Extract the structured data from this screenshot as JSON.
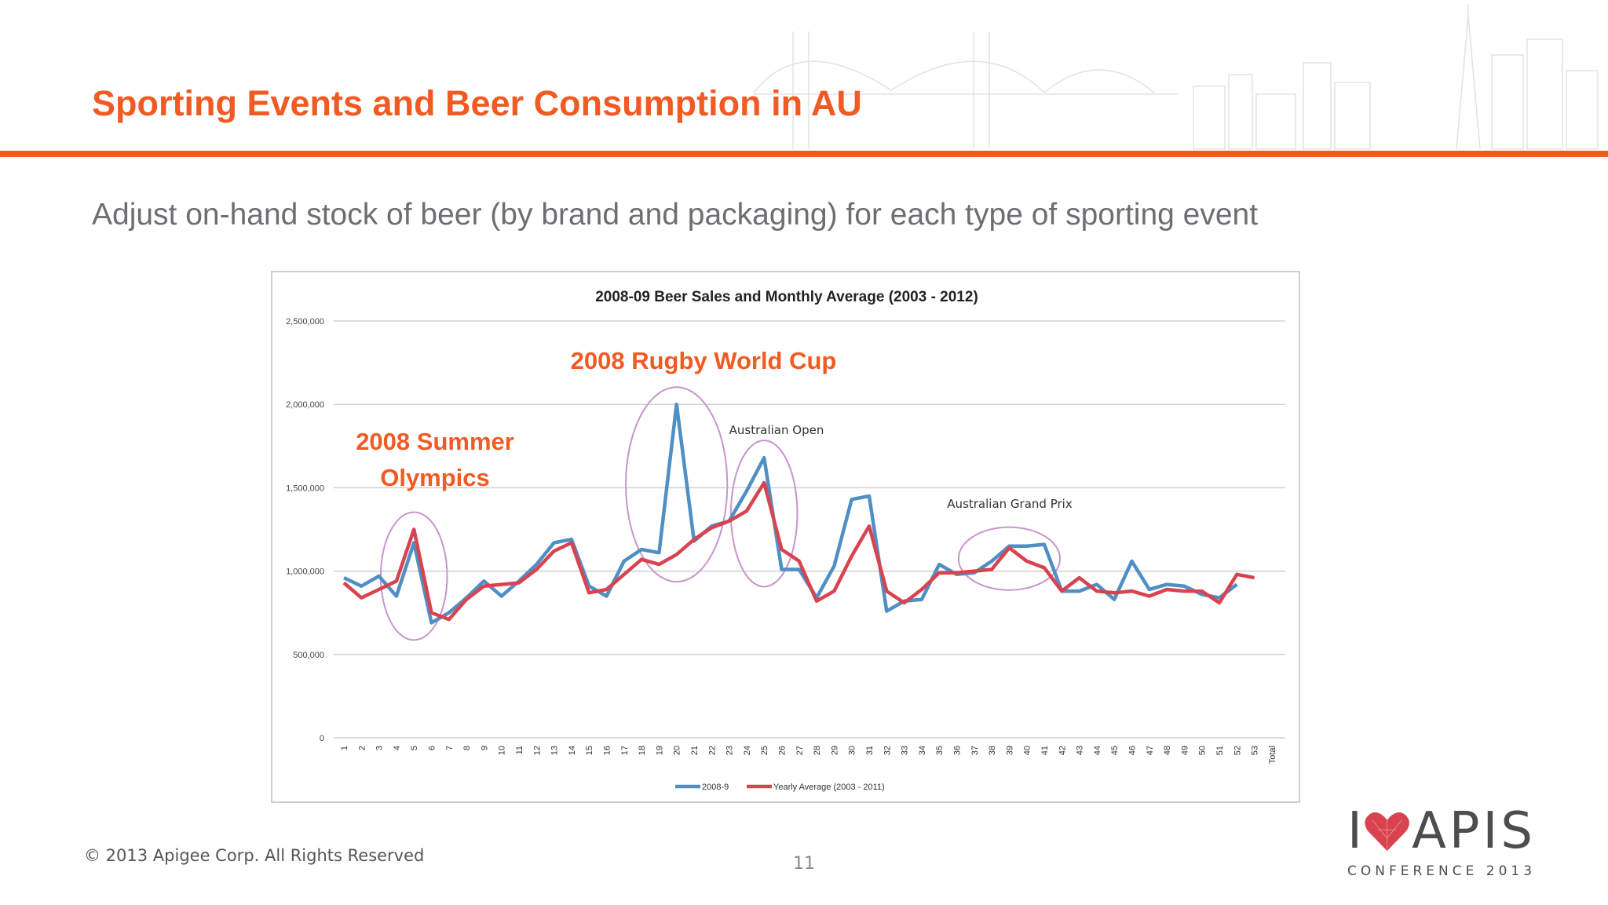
{
  "slide": {
    "title": "Sporting Events and Beer Consumption in AU",
    "subtitle": "Adjust on-hand stock of beer (by brand and packaging) for each type of sporting event",
    "copyright": "© 2013 Apigee Corp. All Rights Reserved",
    "page_number": "11",
    "accent_color": "#f15a22"
  },
  "logo": {
    "letter_i": "I",
    "word": "APIS",
    "tagline": "CONFERENCE 2013",
    "icon": "heart-icon"
  },
  "chart_data": {
    "type": "line",
    "title": "2008-09 Beer Sales and Monthly Average (2003 - 2012)",
    "xlabel": "",
    "ylabel": "",
    "categories": [
      "1",
      "2",
      "3",
      "4",
      "5",
      "6",
      "7",
      "8",
      "9",
      "10",
      "11",
      "12",
      "13",
      "14",
      "15",
      "16",
      "17",
      "18",
      "19",
      "20",
      "21",
      "22",
      "23",
      "24",
      "25",
      "26",
      "27",
      "28",
      "29",
      "30",
      "31",
      "32",
      "33",
      "34",
      "35",
      "36",
      "37",
      "38",
      "39",
      "40",
      "41",
      "42",
      "43",
      "44",
      "45",
      "46",
      "47",
      "48",
      "49",
      "50",
      "51",
      "52",
      "53",
      "Total"
    ],
    "ylim": [
      0,
      2500000
    ],
    "yticks": [
      0,
      500000,
      1000000,
      1500000,
      2000000,
      2500000
    ],
    "ytick_labels": [
      "0",
      "500,000",
      "1,000,000",
      "1,500,000",
      "2,000,000",
      "2,500,000"
    ],
    "grid": true,
    "legend_position": "bottom",
    "series": [
      {
        "name": "2008-9",
        "color": "#4f8fc4",
        "values": [
          960000,
          910000,
          970000,
          850000,
          1170000,
          690000,
          750000,
          840000,
          940000,
          850000,
          940000,
          1040000,
          1170000,
          1190000,
          910000,
          850000,
          1060000,
          1130000,
          1110000,
          2000000,
          1180000,
          1270000,
          1300000,
          1480000,
          1680000,
          1010000,
          1010000,
          840000,
          1030000,
          1430000,
          1450000,
          760000,
          820000,
          830000,
          1040000,
          980000,
          990000,
          1060000,
          1150000,
          1150000,
          1160000,
          880000,
          880000,
          920000,
          830000,
          1060000,
          890000,
          920000,
          910000,
          860000,
          840000,
          920000,
          null,
          null
        ]
      },
      {
        "name": "Yearly Average (2003 - 2011)",
        "color": "#d9434f",
        "values": [
          930000,
          840000,
          890000,
          940000,
          1250000,
          750000,
          710000,
          830000,
          910000,
          920000,
          930000,
          1010000,
          1120000,
          1170000,
          870000,
          890000,
          980000,
          1070000,
          1040000,
          1100000,
          1190000,
          1260000,
          1300000,
          1360000,
          1530000,
          1130000,
          1060000,
          820000,
          880000,
          1090000,
          1270000,
          880000,
          810000,
          890000,
          990000,
          990000,
          1000000,
          1010000,
          1140000,
          1060000,
          1020000,
          880000,
          960000,
          880000,
          870000,
          880000,
          850000,
          890000,
          880000,
          880000,
          810000,
          980000,
          960000,
          null
        ]
      }
    ],
    "annotations": [
      {
        "text": "2008 Summer Olympics",
        "lines": [
          "2008 Summer",
          "Olympics"
        ],
        "color": "#f15a22",
        "weeks": [
          4,
          6
        ]
      },
      {
        "text": "2008 Rugby World Cup",
        "lines": [
          "2008 Rugby World Cup"
        ],
        "color": "#f15a22",
        "weeks": [
          18,
          22
        ]
      },
      {
        "text": "Australian Open",
        "lines": [
          "Australian Open"
        ],
        "color": "#333333",
        "weeks": [
          24,
          26
        ]
      },
      {
        "text": "Australian Grand Prix",
        "lines": [
          "Australian Grand Prix"
        ],
        "color": "#333333",
        "weeks": [
          37,
          41
        ]
      }
    ],
    "ellipse_color": "#c795cc"
  }
}
